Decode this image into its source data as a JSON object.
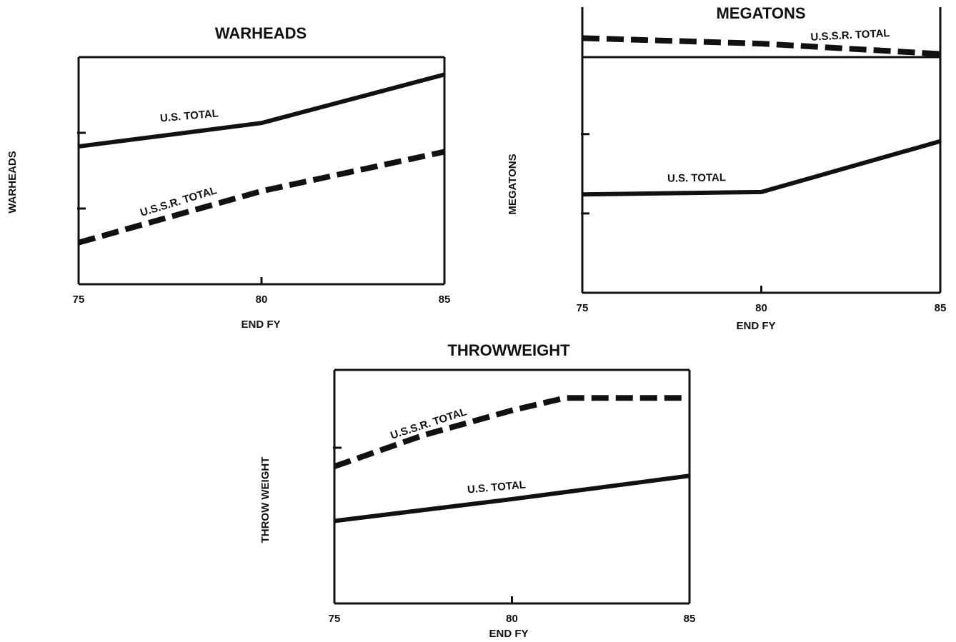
{
  "chart_data": [
    {
      "type": "line",
      "title": "WARHEADS",
      "xlabel": "END FY",
      "ylabel": "WARHEADS",
      "xlim": [
        75,
        85
      ],
      "xticks": [
        75,
        80,
        85
      ],
      "ylim": [
        0,
        3
      ],
      "yticks": [
        1,
        2
      ],
      "series": [
        {
          "name": "U.S. TOTAL",
          "color": "#111111",
          "dashed": false,
          "x": [
            75,
            80,
            85
          ],
          "values": [
            1.82,
            2.13,
            2.77
          ]
        },
        {
          "name": "U.S.S.R. TOTAL",
          "color": "#111111",
          "dashed": true,
          "x": [
            75,
            80,
            85
          ],
          "values": [
            0.55,
            1.23,
            1.75
          ]
        }
      ]
    },
    {
      "type": "line",
      "title": "MEGATONS",
      "xlabel": "END FY",
      "ylabel": "MEGATONS",
      "xlim": [
        75,
        85
      ],
      "xticks": [
        75,
        80,
        85
      ],
      "ylim": [
        0,
        3.6
      ],
      "yticks": [
        1,
        2
      ],
      "series": [
        {
          "name": "U.S.S.R. TOTAL",
          "color": "#111111",
          "dashed": true,
          "x": [
            75,
            80,
            85
          ],
          "values": [
            3.21,
            3.14,
            3.01
          ]
        },
        {
          "name": "U.S. TOTAL",
          "color": "#111111",
          "dashed": false,
          "x": [
            75,
            80,
            85
          ],
          "values": [
            1.24,
            1.27,
            1.91
          ]
        }
      ]
    },
    {
      "type": "line",
      "title": "THROWWEIGHT",
      "xlabel": "END FY",
      "ylabel": "THROW WEIGHT",
      "xlim": [
        75,
        85
      ],
      "xticks": [
        75,
        80,
        85
      ],
      "ylim": [
        0,
        1.5
      ],
      "yticks": [
        1
      ],
      "series": [
        {
          "name": "U.S.S.R. TOTAL",
          "color": "#111111",
          "dashed": true,
          "x": [
            75,
            77.5,
            80,
            81.5,
            85
          ],
          "values": [
            0.88,
            1.08,
            1.24,
            1.32,
            1.32
          ]
        },
        {
          "name": "U.S. TOTAL",
          "color": "#111111",
          "dashed": false,
          "x": [
            75,
            80,
            85
          ],
          "values": [
            0.53,
            0.67,
            0.82
          ]
        }
      ]
    }
  ]
}
